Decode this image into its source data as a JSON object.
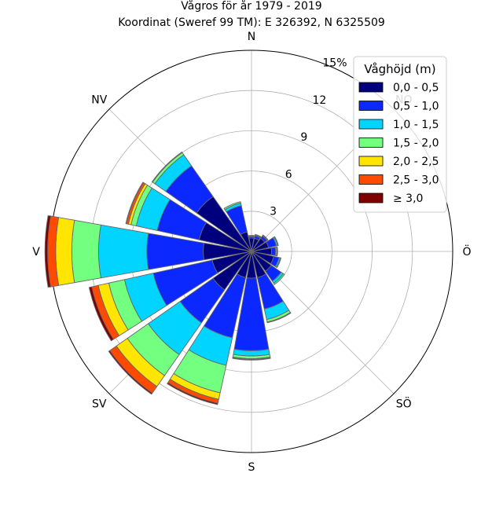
{
  "chart_data": {
    "type": "windrose",
    "title": "Vågros för år 1979 - 2019",
    "subtitle": "Koordinat (Sweref 99 TM): E 326392, N 6325509",
    "direction_labels": [
      "N",
      "NO",
      "Ö",
      "SÖ",
      "S",
      "SV",
      "V",
      "NV"
    ],
    "radial_ticks": [
      "3",
      "6",
      "9",
      "12",
      "15%"
    ],
    "radial_max": 15,
    "sector_width_deg": 20,
    "legend_title": "Våghöjd (m)",
    "legend_placement": "top-right",
    "grid": true,
    "bins": [
      {
        "label": "0,0 - 0,5",
        "color": "#00007f"
      },
      {
        "label": "0,5 - 1,0",
        "color": "#0a28ff"
      },
      {
        "label": "1,0 - 1,5",
        "color": "#00d4ff"
      },
      {
        "label": "1,5 - 2,0",
        "color": "#73ff7f"
      },
      {
        "label": "2,0 - 2,5",
        "color": "#ffe500"
      },
      {
        "label": "2,5 - 3,0",
        "color": "#ff4a00"
      },
      {
        "label": "≥ 3,0",
        "color": "#7f0000"
      }
    ],
    "sectors": [
      {
        "direction": 0,
        "cumulative": [
          1.0,
          1.1,
          1.15,
          1.2,
          1.2,
          1.2,
          1.2
        ]
      },
      {
        "direction": 22.5,
        "cumulative": [
          1.0,
          1.2,
          1.25,
          1.3,
          1.3,
          1.3,
          1.3
        ]
      },
      {
        "direction": 45,
        "cumulative": [
          1.2,
          1.4,
          1.45,
          1.5,
          1.5,
          1.5,
          1.5
        ]
      },
      {
        "direction": 67.5,
        "cumulative": [
          1.3,
          1.9,
          2.0,
          2.05,
          2.05,
          2.05,
          2.05
        ]
      },
      {
        "direction": 90,
        "cumulative": [
          1.5,
          1.8,
          1.9,
          1.95,
          1.95,
          1.95,
          1.95
        ]
      },
      {
        "direction": 112.5,
        "cumulative": [
          1.7,
          2.1,
          2.2,
          2.25,
          2.25,
          2.25,
          2.25
        ]
      },
      {
        "direction": 135,
        "cumulative": [
          1.8,
          2.7,
          2.9,
          3.0,
          3.0,
          3.0,
          3.0
        ]
      },
      {
        "direction": 157.5,
        "cumulative": [
          2.0,
          4.4,
          5.2,
          5.4,
          5.45,
          5.45,
          5.45
        ]
      },
      {
        "direction": 180,
        "cumulative": [
          2.0,
          7.4,
          7.8,
          8.0,
          8.05,
          8.1,
          8.1
        ]
      },
      {
        "direction": 202.5,
        "cumulative": [
          2.0,
          6.6,
          8.7,
          10.8,
          11.3,
          11.6,
          11.7
        ]
      },
      {
        "direction": 225,
        "cumulative": [
          3.5,
          6.5,
          9.4,
          11.3,
          12.3,
          12.9,
          13.0
        ]
      },
      {
        "direction": 247.5,
        "cumulative": [
          3.0,
          7.5,
          9.7,
          10.9,
          11.7,
          12.2,
          12.4
        ]
      },
      {
        "direction": 270,
        "cumulative": [
          3.6,
          7.8,
          11.4,
          13.4,
          14.6,
          15.2,
          15.4
        ]
      },
      {
        "direction": 292.5,
        "cumulative": [
          4.0,
          7.2,
          8.8,
          9.2,
          9.4,
          9.55,
          9.6
        ]
      },
      {
        "direction": 315,
        "cumulative": [
          5.0,
          7.8,
          8.8,
          9.0,
          9.05,
          9.05,
          9.05
        ]
      },
      {
        "direction": 337.5,
        "cumulative": [
          1.5,
          3.5,
          3.7,
          3.8,
          3.8,
          3.8,
          3.8
        ]
      }
    ]
  }
}
